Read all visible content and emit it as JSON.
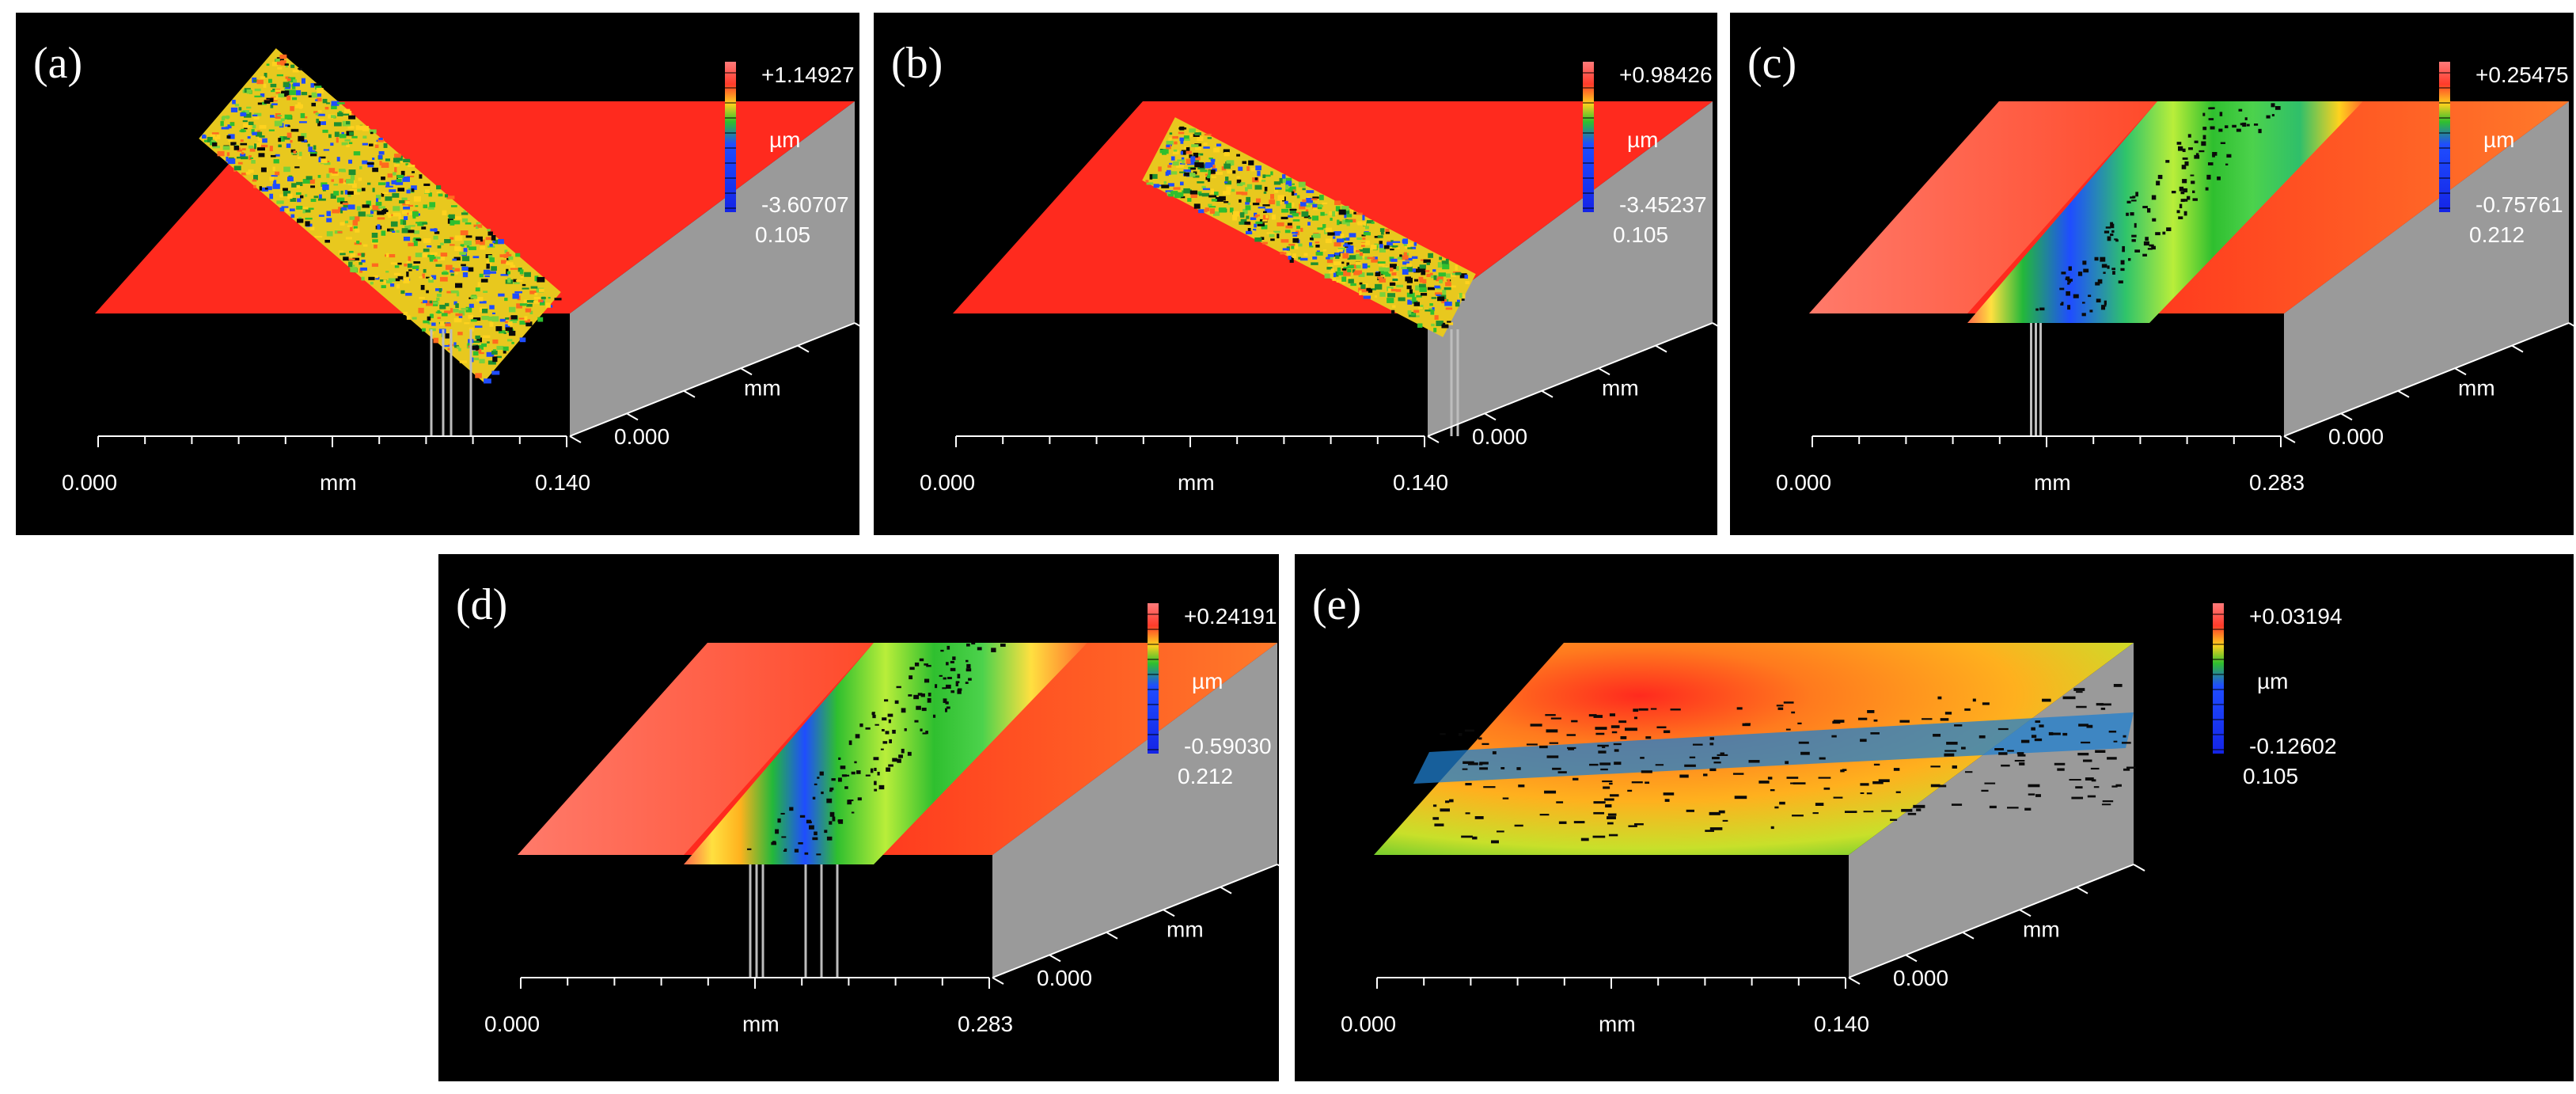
{
  "colors": {
    "page_background": "#ffffff",
    "panel_background": "#000000",
    "surface_red": "#ff2a1e",
    "axis_text": "#ffffff",
    "depth_wall": "#9a9a9a",
    "colorbar": [
      "#ff6b6b",
      "#ff3b2a",
      "#ffd21e",
      "#2fbf2f",
      "#1f4dff",
      "#1424e6"
    ]
  },
  "panels": [
    {
      "label": "(a)",
      "scale_max": "+1.14927",
      "scale_unit": "µm",
      "scale_min": "-3.60707",
      "y_max": "0.105",
      "y_unit": "mm",
      "y_min": "0.000",
      "x_min": "0.000",
      "x_unit": "mm",
      "x_max": "0.140",
      "surface_style": "diagonal damaged wear track, rough green/yellow debris"
    },
    {
      "label": "(b)",
      "scale_max": "+0.98426",
      "scale_unit": "µm",
      "scale_min": "-3.45237",
      "y_max": "0.105",
      "y_unit": "mm",
      "y_min": "0.000",
      "x_min": "0.000",
      "x_unit": "mm",
      "x_max": "0.140",
      "surface_style": "narrow diagonal rough wear track"
    },
    {
      "label": "(c)",
      "scale_max": "+0.25475",
      "scale_unit": "µm",
      "scale_min": "-0.75761",
      "y_max": "0.212",
      "y_unit": "mm",
      "y_min": "0.000",
      "x_min": "0.000",
      "x_unit": "mm",
      "x_max": "0.283",
      "surface_style": "smooth groove with green/blue bands"
    },
    {
      "label": "(d)",
      "scale_max": "+0.24191",
      "scale_unit": "µm",
      "scale_min": "-0.59030",
      "y_max": "0.212",
      "y_unit": "mm",
      "y_min": "0.000",
      "x_min": "0.000",
      "x_unit": "mm",
      "x_max": "0.283",
      "surface_style": "smooth groove with yellow/green/blue bands"
    },
    {
      "label": "(e)",
      "scale_max": "+0.03194",
      "scale_unit": "µm",
      "scale_min": "-0.12602",
      "y_max": "0.105",
      "y_unit": "mm",
      "y_min": "0.000",
      "x_min": "0.000",
      "x_unit": "mm",
      "x_max": "0.140",
      "surface_style": "mostly flat orange/green surface with faint horizontal track"
    }
  ]
}
